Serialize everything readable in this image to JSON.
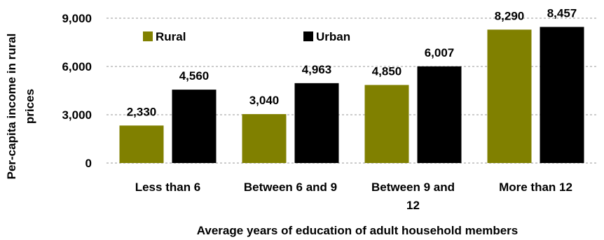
{
  "chart_data": {
    "type": "bar",
    "categories": [
      [
        "Less than 6"
      ],
      [
        "Between 6 and 9"
      ],
      [
        "Between 9 and",
        "12"
      ],
      [
        "More than 12"
      ]
    ],
    "series": [
      {
        "name": "Rural",
        "color": "#808000",
        "values": [
          2330,
          3040,
          4850,
          8290
        ],
        "labels": [
          "2,330",
          "3,040",
          "4,850",
          "8,290"
        ]
      },
      {
        "name": "Urban",
        "color": "#000000",
        "values": [
          4560,
          4963,
          6007,
          8457
        ],
        "labels": [
          "4,560",
          "4,963",
          "6,007",
          "8,457"
        ]
      }
    ],
    "yticks": [
      0,
      3000,
      6000,
      9000
    ],
    "ytick_labels": [
      "0",
      "3,000",
      "6,000",
      "9,000"
    ],
    "ylim": [
      0,
      9000
    ],
    "ylabel": [
      "Per-capita income in rural",
      "prices"
    ],
    "xlabel": "Average years of education of adult household members",
    "grid": true,
    "legend_position": "top-left"
  }
}
